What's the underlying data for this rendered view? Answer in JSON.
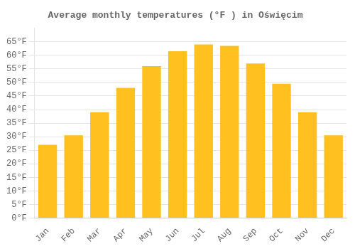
{
  "chart_data": {
    "type": "bar",
    "title": "Average monthly temperatures (°F ) in Oświęcim",
    "categories": [
      "Jan",
      "Feb",
      "Mar",
      "Apr",
      "May",
      "Jun",
      "Jul",
      "Aug",
      "Sep",
      "Oct",
      "Nov",
      "Dec"
    ],
    "values": [
      27,
      30.5,
      39,
      48,
      56,
      61.5,
      64,
      63.5,
      57,
      49.5,
      39,
      30.5
    ],
    "color": "#FFC020",
    "ylim": [
      0,
      70
    ],
    "yticks": [
      {
        "value": 0,
        "label": "0°F"
      },
      {
        "value": 5,
        "label": "5°F"
      },
      {
        "value": 10,
        "label": "10°F"
      },
      {
        "value": 15,
        "label": "15°F"
      },
      {
        "value": 20,
        "label": "20°F"
      },
      {
        "value": 25,
        "label": "25°F"
      },
      {
        "value": 30,
        "label": "30°F"
      },
      {
        "value": 35,
        "label": "35°F"
      },
      {
        "value": 40,
        "label": "40°F"
      },
      {
        "value": 45,
        "label": "45°F"
      },
      {
        "value": 50,
        "label": "50°F"
      },
      {
        "value": 55,
        "label": "55°F"
      },
      {
        "value": 60,
        "label": "60°F"
      },
      {
        "value": 65,
        "label": "65°F"
      }
    ],
    "grid": true
  }
}
